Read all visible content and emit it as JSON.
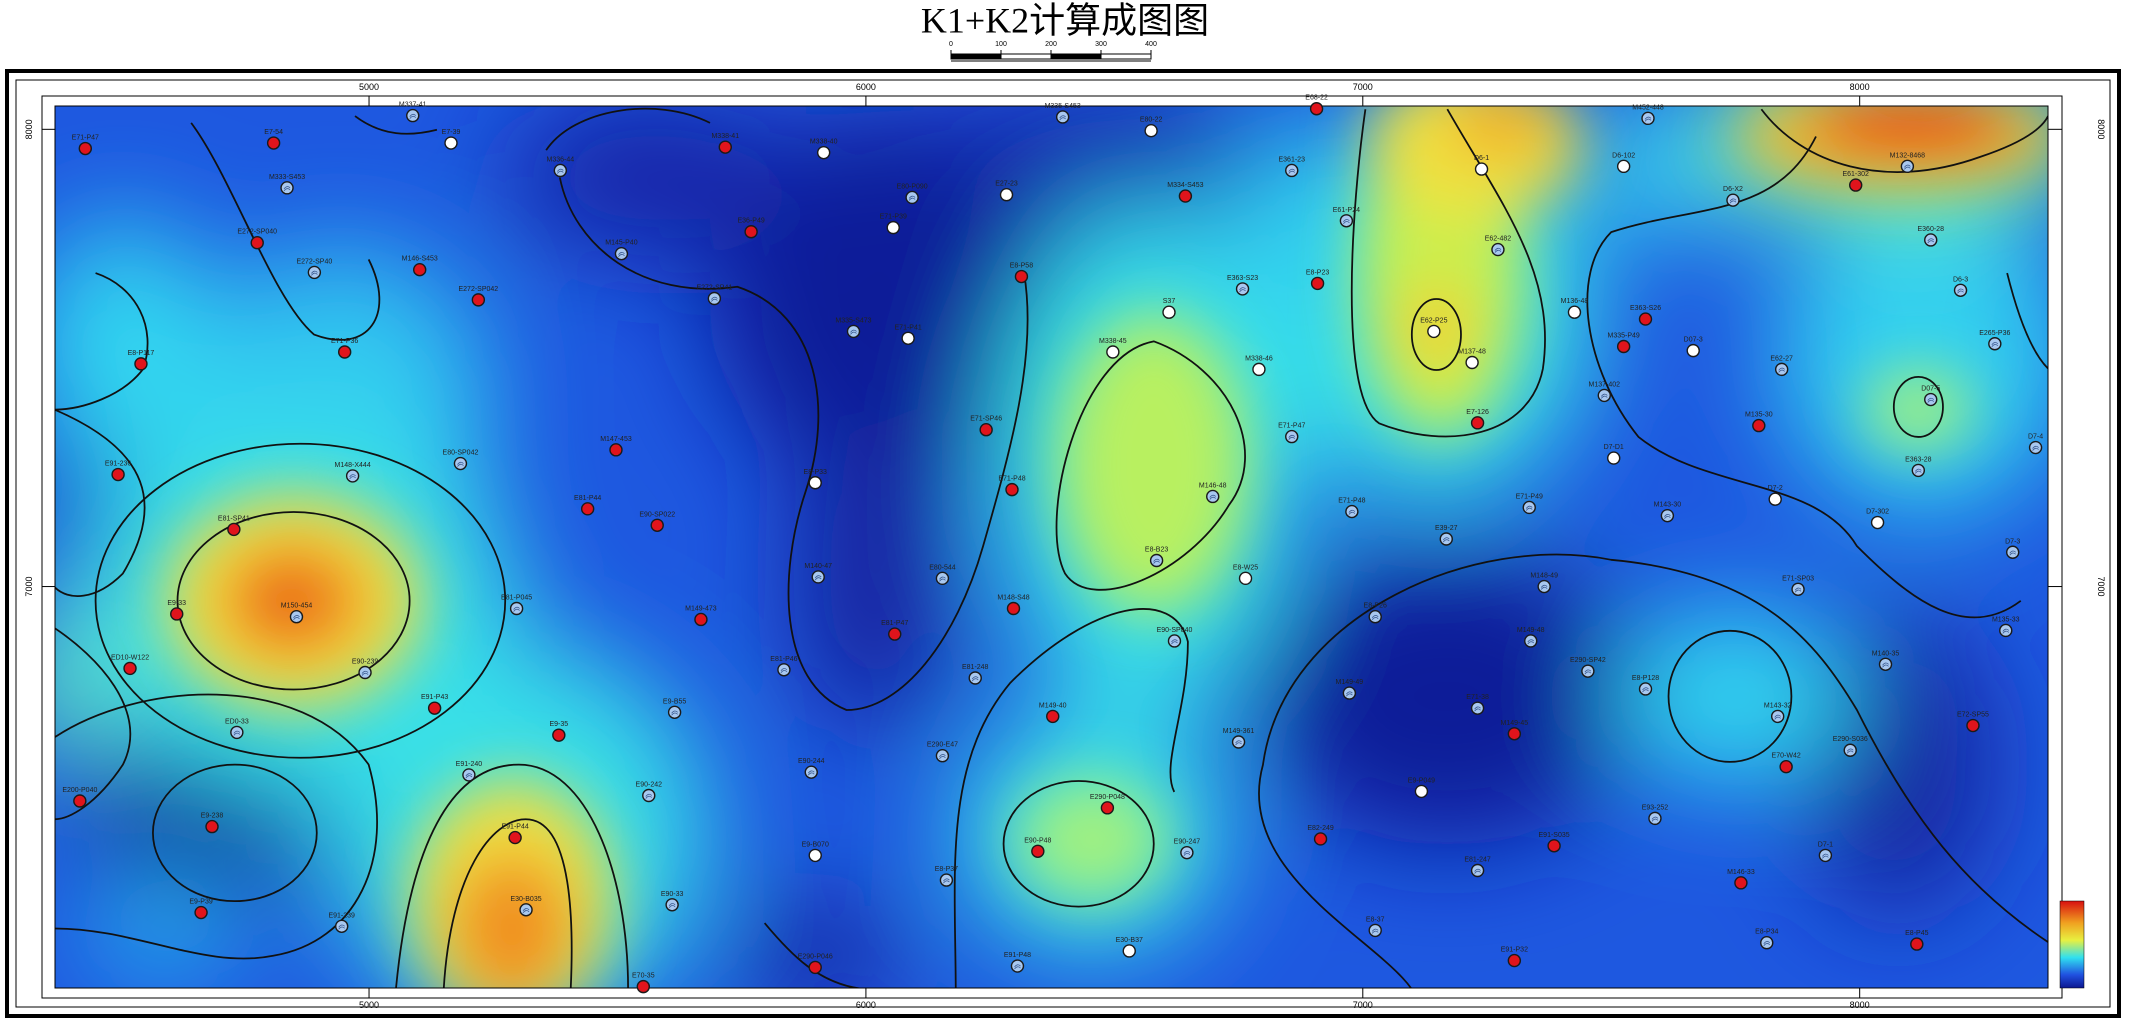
{
  "chart_data": {
    "type": "contour-map",
    "title": "K1+K2计算成图图",
    "scale_bar": {
      "ticks": [
        0,
        100,
        200,
        300,
        400
      ]
    },
    "xlim": [
      4368,
      8379
    ],
    "ylim": [
      6122,
      8051
    ],
    "xticks": [
      5000,
      6000,
      7000,
      8000
    ],
    "yticks": [
      7000,
      8000
    ],
    "well_colors": {
      "red": "#e0141c",
      "blue": "#a8c8f0",
      "white": "#ffffff"
    },
    "wells": [
      {
        "name": "E71-P47",
        "x": 4429,
        "y": 7958,
        "kind": "red"
      },
      {
        "name": "E7-54",
        "x": 4808,
        "y": 7970,
        "kind": "red"
      },
      {
        "name": "M337-41",
        "x": 5088,
        "y": 8030,
        "kind": "blue"
      },
      {
        "name": "E7-39",
        "x": 5165,
        "y": 7970,
        "kind": "white"
      },
      {
        "name": "M333-S453",
        "x": 4835,
        "y": 7872,
        "kind": "blue"
      },
      {
        "name": "E272-SP040",
        "x": 4775,
        "y": 7752,
        "kind": "red"
      },
      {
        "name": "E272-SP40",
        "x": 4890,
        "y": 7687,
        "kind": "blue"
      },
      {
        "name": "M146-S453",
        "x": 5102,
        "y": 7693,
        "kind": "red"
      },
      {
        "name": "E272-SP042",
        "x": 5220,
        "y": 7627,
        "kind": "red"
      },
      {
        "name": "E71-P36",
        "x": 4951,
        "y": 7513,
        "kind": "red"
      },
      {
        "name": "E8-P117",
        "x": 4541,
        "y": 7487,
        "kind": "red"
      },
      {
        "name": "M336-44",
        "x": 5385,
        "y": 7910,
        "kind": "blue"
      },
      {
        "name": "M145-P40",
        "x": 5508,
        "y": 7728,
        "kind": "blue"
      },
      {
        "name": "M338-41",
        "x": 5717,
        "y": 7961,
        "kind": "red"
      },
      {
        "name": "M338-40",
        "x": 5915,
        "y": 7949,
        "kind": "white"
      },
      {
        "name": "E36-P49",
        "x": 5769,
        "y": 7776,
        "kind": "red"
      },
      {
        "name": "E80-P090",
        "x": 6093,
        "y": 7851,
        "kind": "blue"
      },
      {
        "name": "E27-23",
        "x": 6283,
        "y": 7857,
        "kind": "white"
      },
      {
        "name": "E71-P39",
        "x": 6055,
        "y": 7785,
        "kind": "white"
      },
      {
        "name": "E272-SP41",
        "x": 5695,
        "y": 7630,
        "kind": "blue"
      },
      {
        "name": "M335-S473",
        "x": 5975,
        "y": 7558,
        "kind": "blue"
      },
      {
        "name": "E71-P41",
        "x": 6085,
        "y": 7543,
        "kind": "white"
      },
      {
        "name": "E8-P58",
        "x": 6313,
        "y": 7678,
        "kind": "red"
      },
      {
        "name": "M334-S453",
        "x": 6643,
        "y": 7854,
        "kind": "red"
      },
      {
        "name": "M335-S453",
        "x": 6396,
        "y": 8027,
        "kind": "blue"
      },
      {
        "name": "E80-22",
        "x": 6574,
        "y": 7997,
        "kind": "white"
      },
      {
        "name": "E68-22",
        "x": 6907,
        "y": 8045,
        "kind": "red"
      },
      {
        "name": "E361-23",
        "x": 6857,
        "y": 7910,
        "kind": "blue"
      },
      {
        "name": "E61-P24",
        "x": 6967,
        "y": 7800,
        "kind": "blue"
      },
      {
        "name": "E363-S23",
        "x": 6758,
        "y": 7651,
        "kind": "blue"
      },
      {
        "name": "S37",
        "x": 6610,
        "y": 7600,
        "kind": "white"
      },
      {
        "name": "E8-P23",
        "x": 6909,
        "y": 7663,
        "kind": "red"
      },
      {
        "name": "M338-45",
        "x": 6497,
        "y": 7513,
        "kind": "white"
      },
      {
        "name": "M338-46",
        "x": 6791,
        "y": 7475,
        "kind": "white"
      },
      {
        "name": "E62-P25",
        "x": 7143,
        "y": 7558,
        "kind": "white"
      },
      {
        "name": "M137-48",
        "x": 7220,
        "y": 7490,
        "kind": "white"
      },
      {
        "name": "E7-126",
        "x": 7231,
        "y": 7358,
        "kind": "red"
      },
      {
        "name": "E62-482",
        "x": 7272,
        "y": 7737,
        "kind": "blue"
      },
      {
        "name": "D6-1",
        "x": 7239,
        "y": 7913,
        "kind": "white"
      },
      {
        "name": "M452-448",
        "x": 7574,
        "y": 8024,
        "kind": "blue"
      },
      {
        "name": "D6-102",
        "x": 7525,
        "y": 7919,
        "kind": "white"
      },
      {
        "name": "E61-302",
        "x": 7992,
        "y": 7878,
        "kind": "red"
      },
      {
        "name": "M132-8468",
        "x": 8096,
        "y": 7919,
        "kind": "blue"
      },
      {
        "name": "D6-X2",
        "x": 7745,
        "y": 7845,
        "kind": "blue"
      },
      {
        "name": "E360-28",
        "x": 8143,
        "y": 7758,
        "kind": "blue"
      },
      {
        "name": "D6-3",
        "x": 8203,
        "y": 7648,
        "kind": "blue"
      },
      {
        "name": "E265-P36",
        "x": 8272,
        "y": 7531,
        "kind": "blue"
      },
      {
        "name": "M136-48",
        "x": 7426,
        "y": 7600,
        "kind": "white"
      },
      {
        "name": "E363-S26",
        "x": 7569,
        "y": 7585,
        "kind": "red"
      },
      {
        "name": "M335-P49",
        "x": 7525,
        "y": 7525,
        "kind": "red"
      },
      {
        "name": "D07-3",
        "x": 7665,
        "y": 7516,
        "kind": "white"
      },
      {
        "name": "E62-27",
        "x": 7843,
        "y": 7475,
        "kind": "blue"
      },
      {
        "name": "M137-402",
        "x": 7486,
        "y": 7418,
        "kind": "blue"
      },
      {
        "name": "M135-30",
        "x": 7797,
        "y": 7352,
        "kind": "red"
      },
      {
        "name": "D07-5",
        "x": 8143,
        "y": 7409,
        "kind": "blue"
      },
      {
        "name": "D7-D1",
        "x": 7505,
        "y": 7281,
        "kind": "white"
      },
      {
        "name": "E363-28",
        "x": 8118,
        "y": 7254,
        "kind": "blue"
      },
      {
        "name": "D7-2",
        "x": 7830,
        "y": 7191,
        "kind": "white"
      },
      {
        "name": "D7-4",
        "x": 8354,
        "y": 7304,
        "kind": "blue"
      },
      {
        "name": "D7-3",
        "x": 8308,
        "y": 7075,
        "kind": "blue"
      },
      {
        "name": "D7-302",
        "x": 8036,
        "y": 7140,
        "kind": "white"
      },
      {
        "name": "M143-30",
        "x": 7613,
        "y": 7155,
        "kind": "blue"
      },
      {
        "name": "E71-P49",
        "x": 7335,
        "y": 7173,
        "kind": "blue"
      },
      {
        "name": "E71-P48",
        "x": 6978,
        "y": 7164,
        "kind": "blue"
      },
      {
        "name": "E71-P47",
        "x": 6857,
        "y": 7328,
        "kind": "blue"
      },
      {
        "name": "E39-27",
        "x": 7168,
        "y": 7104,
        "kind": "blue"
      },
      {
        "name": "M146-48",
        "x": 6698,
        "y": 7197,
        "kind": "blue"
      },
      {
        "name": "E8-B23",
        "x": 6585,
        "y": 7057,
        "kind": "blue"
      },
      {
        "name": "E8-W25",
        "x": 6764,
        "y": 7018,
        "kind": "white"
      },
      {
        "name": "E71-P48",
        "x": 6294,
        "y": 7212,
        "kind": "red"
      },
      {
        "name": "E71-SP46",
        "x": 6242,
        "y": 7343,
        "kind": "red"
      },
      {
        "name": "E8-P33",
        "x": 5898,
        "y": 7227,
        "kind": "white"
      },
      {
        "name": "M140-47",
        "x": 5904,
        "y": 7021,
        "kind": "blue"
      },
      {
        "name": "E80-544",
        "x": 6154,
        "y": 7018,
        "kind": "blue"
      },
      {
        "name": "M148-S48",
        "x": 6297,
        "y": 6952,
        "kind": "red"
      },
      {
        "name": "E81-P47",
        "x": 6058,
        "y": 6896,
        "kind": "red"
      },
      {
        "name": "E81-P46",
        "x": 5835,
        "y": 6818,
        "kind": "blue"
      },
      {
        "name": "E81-248",
        "x": 6220,
        "y": 6800,
        "kind": "blue"
      },
      {
        "name": "M149-40",
        "x": 6376,
        "y": 6716,
        "kind": "red"
      },
      {
        "name": "E90-SP040",
        "x": 6621,
        "y": 6881,
        "kind": "blue"
      },
      {
        "name": "M149-361",
        "x": 6750,
        "y": 6660,
        "kind": "blue"
      },
      {
        "name": "E8-P26",
        "x": 7025,
        "y": 6934,
        "kind": "blue"
      },
      {
        "name": "M149-49",
        "x": 6973,
        "y": 6767,
        "kind": "blue"
      },
      {
        "name": "M149-48",
        "x": 7338,
        "y": 6881,
        "kind": "blue"
      },
      {
        "name": "M148-49",
        "x": 7365,
        "y": 7000,
        "kind": "blue"
      },
      {
        "name": "E290-SP42",
        "x": 7453,
        "y": 6815,
        "kind": "blue"
      },
      {
        "name": "E8-P128",
        "x": 7569,
        "y": 6776,
        "kind": "blue"
      },
      {
        "name": "E71-38",
        "x": 7231,
        "y": 6734,
        "kind": "blue"
      },
      {
        "name": "M149-45",
        "x": 7305,
        "y": 6678,
        "kind": "red"
      },
      {
        "name": "E9-P049",
        "x": 7118,
        "y": 6552,
        "kind": "white"
      },
      {
        "name": "E71-SP03",
        "x": 7876,
        "y": 6994,
        "kind": "blue"
      },
      {
        "name": "M140-35",
        "x": 8052,
        "y": 6830,
        "kind": "blue"
      },
      {
        "name": "M135-33",
        "x": 8294,
        "y": 6904,
        "kind": "blue"
      },
      {
        "name": "M143-32",
        "x": 7835,
        "y": 6716,
        "kind": "blue"
      },
      {
        "name": "E290-S036",
        "x": 7981,
        "y": 6642,
        "kind": "blue"
      },
      {
        "name": "E70-W42",
        "x": 7852,
        "y": 6606,
        "kind": "red"
      },
      {
        "name": "E72-SP55",
        "x": 8228,
        "y": 6696,
        "kind": "red"
      },
      {
        "name": "E93-252",
        "x": 7588,
        "y": 6493,
        "kind": "blue"
      },
      {
        "name": "E91-S035",
        "x": 7385,
        "y": 6433,
        "kind": "red"
      },
      {
        "name": "D7-1",
        "x": 7931,
        "y": 6412,
        "kind": "blue"
      },
      {
        "name": "M146-33",
        "x": 7761,
        "y": 6352,
        "kind": "red"
      },
      {
        "name": "E81-247",
        "x": 7231,
        "y": 6379,
        "kind": "blue"
      },
      {
        "name": "E82-249",
        "x": 6915,
        "y": 6448,
        "kind": "red"
      },
      {
        "name": "E290-P048",
        "x": 6486,
        "y": 6516,
        "kind": "red"
      },
      {
        "name": "E90-P48",
        "x": 6346,
        "y": 6421,
        "kind": "red"
      },
      {
        "name": "E90-247",
        "x": 6646,
        "y": 6418,
        "kind": "blue"
      },
      {
        "name": "E8-37",
        "x": 7025,
        "y": 6248,
        "kind": "blue"
      },
      {
        "name": "E91-P32",
        "x": 7305,
        "y": 6182,
        "kind": "red"
      },
      {
        "name": "E8-P34",
        "x": 7813,
        "y": 6221,
        "kind": "blue"
      },
      {
        "name": "E8-P45",
        "x": 8115,
        "y": 6218,
        "kind": "red"
      },
      {
        "name": "E8-P37",
        "x": 6162,
        "y": 6358,
        "kind": "blue"
      },
      {
        "name": "E30-B37",
        "x": 6530,
        "y": 6203,
        "kind": "white"
      },
      {
        "name": "E91-P48",
        "x": 6305,
        "y": 6170,
        "kind": "blue"
      },
      {
        "name": "E290-P046",
        "x": 5898,
        "y": 6167,
        "kind": "red"
      },
      {
        "name": "E70-35",
        "x": 5552,
        "y": 6125,
        "kind": "red"
      },
      {
        "name": "E90-244",
        "x": 5890,
        "y": 6594,
        "kind": "blue"
      },
      {
        "name": "E290-E47",
        "x": 6154,
        "y": 6630,
        "kind": "blue"
      },
      {
        "name": "E9-B070",
        "x": 5898,
        "y": 6412,
        "kind": "white"
      },
      {
        "name": "E9-B55",
        "x": 5615,
        "y": 6725,
        "kind": "blue"
      },
      {
        "name": "E9-35",
        "x": 5382,
        "y": 6675,
        "kind": "red"
      },
      {
        "name": "E90-242",
        "x": 5563,
        "y": 6543,
        "kind": "blue"
      },
      {
        "name": "E91-240",
        "x": 5201,
        "y": 6588,
        "kind": "blue"
      },
      {
        "name": "E91-P44",
        "x": 5294,
        "y": 6451,
        "kind": "red"
      },
      {
        "name": "E30-B035",
        "x": 5316,
        "y": 6293,
        "kind": "blue"
      },
      {
        "name": "E90-33",
        "x": 5610,
        "y": 6304,
        "kind": "blue"
      },
      {
        "name": "E91-239",
        "x": 4945,
        "y": 6257,
        "kind": "blue"
      },
      {
        "name": "E9-P39",
        "x": 4662,
        "y": 6287,
        "kind": "red"
      },
      {
        "name": "E9-238",
        "x": 4684,
        "y": 6475,
        "kind": "red"
      },
      {
        "name": "ED0-33",
        "x": 4734,
        "y": 6681,
        "kind": "blue"
      },
      {
        "name": "E200-P040",
        "x": 4418,
        "y": 6531,
        "kind": "red"
      },
      {
        "name": "ED10-W122",
        "x": 4519,
        "y": 6821,
        "kind": "red"
      },
      {
        "name": "E9-33",
        "x": 4613,
        "y": 6940,
        "kind": "red"
      },
      {
        "name": "M150-454",
        "x": 4854,
        "y": 6934,
        "kind": "blue"
      },
      {
        "name": "E81-SP41",
        "x": 4728,
        "y": 7125,
        "kind": "red"
      },
      {
        "name": "E90-239",
        "x": 4992,
        "y": 6812,
        "kind": "blue"
      },
      {
        "name": "E91-P43",
        "x": 5132,
        "y": 6734,
        "kind": "red"
      },
      {
        "name": "E81-P045",
        "x": 5297,
        "y": 6952,
        "kind": "blue"
      },
      {
        "name": "M149-473",
        "x": 5668,
        "y": 6928,
        "kind": "red"
      },
      {
        "name": "E81-P44",
        "x": 5440,
        "y": 7170,
        "kind": "red"
      },
      {
        "name": "E90-SP022",
        "x": 5580,
        "y": 7134,
        "kind": "red"
      },
      {
        "name": "M147-453",
        "x": 5497,
        "y": 7299,
        "kind": "red"
      },
      {
        "name": "E80-SP042",
        "x": 5184,
        "y": 7269,
        "kind": "blue"
      },
      {
        "name": "M148-X444",
        "x": 4967,
        "y": 7242,
        "kind": "blue"
      },
      {
        "name": "E91-236",
        "x": 4495,
        "y": 7245,
        "kind": "red"
      }
    ]
  }
}
